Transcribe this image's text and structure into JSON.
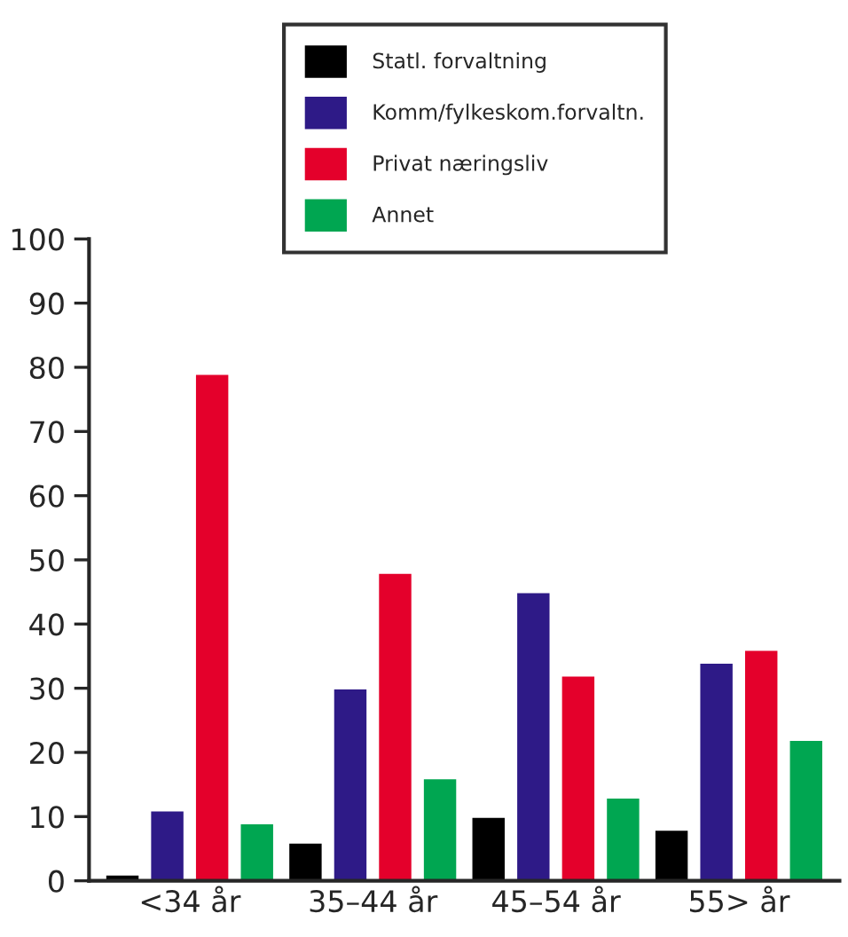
{
  "chart_data": {
    "type": "bar",
    "categories": [
      "<34 år",
      "35–44 år",
      "45–54 år",
      "55> år"
    ],
    "series": [
      {
        "name": "Statl. forvaltning",
        "color": "#000000",
        "values": [
          1,
          6,
          10,
          8
        ]
      },
      {
        "name": "Komm/fylkeskom.forvaltn.",
        "color": "#2e1a87",
        "values": [
          11,
          30,
          45,
          34
        ]
      },
      {
        "name": "Privat næringsliv",
        "color": "#e4002b",
        "values": [
          79,
          48,
          32,
          36
        ]
      },
      {
        "name": "Annet",
        "color": "#00a651",
        "values": [
          9,
          16,
          13,
          22
        ]
      }
    ],
    "ylim": [
      0,
      100
    ],
    "yticks": [
      0,
      10,
      20,
      30,
      40,
      50,
      60,
      70,
      80,
      90,
      100
    ],
    "legend": "top",
    "grid": false
  }
}
